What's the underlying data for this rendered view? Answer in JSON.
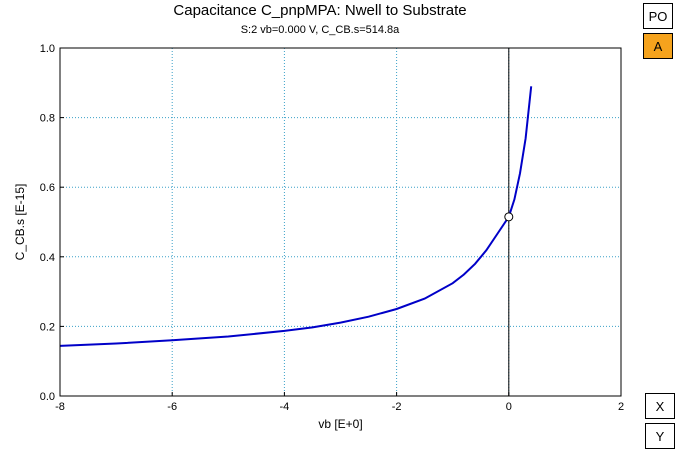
{
  "title": "Capacitance C_pnpMPA: Nwell to Substrate",
  "subtitle": "S:2 vb=0.000  V, C_CB.s=514.8a",
  "side_buttons": {
    "po": "PO",
    "a": "A",
    "x": "X",
    "y": "Y"
  },
  "colors": {
    "curve": "#0000c8",
    "grid": "#3aa0c8",
    "active_button": "#f5a31d"
  },
  "chart_data": {
    "type": "line",
    "title": "Capacitance C_pnpMPA: Nwell to Substrate",
    "subtitle": "S:2 vb=0.000  V, C_CB.s=514.8a",
    "xlabel": "vb  [E+0]",
    "ylabel": "C_CB.s  [E-15]",
    "xlim": [
      -8,
      2
    ],
    "ylim": [
      0,
      1
    ],
    "x_ticks": [
      -8,
      -6,
      -4,
      -2,
      0,
      2
    ],
    "y_ticks": [
      0.0,
      0.2,
      0.4,
      0.6,
      0.8,
      1.0
    ],
    "x_tick_labels": [
      "-8",
      "-6",
      "-4",
      "-2",
      "0",
      "2"
    ],
    "y_tick_labels": [
      "0.0",
      "0.2",
      "0.4",
      "0.6",
      "0.8",
      "1.0"
    ],
    "grid": true,
    "cursor": {
      "x": 0,
      "y": 0.5148
    },
    "series": [
      {
        "x": [
          -8,
          -7,
          -6,
          -5,
          -4,
          -3.5,
          -3,
          -2.5,
          -2,
          -1.5,
          -1,
          -0.8,
          -0.6,
          -0.4,
          -0.2,
          0,
          0.1,
          0.2,
          0.3,
          0.4
        ],
        "values": [
          0.144,
          0.151,
          0.16,
          0.171,
          0.187,
          0.197,
          0.211,
          0.228,
          0.25,
          0.28,
          0.324,
          0.349,
          0.38,
          0.419,
          0.467,
          0.515,
          0.565,
          0.64,
          0.74,
          0.89
        ]
      }
    ]
  }
}
